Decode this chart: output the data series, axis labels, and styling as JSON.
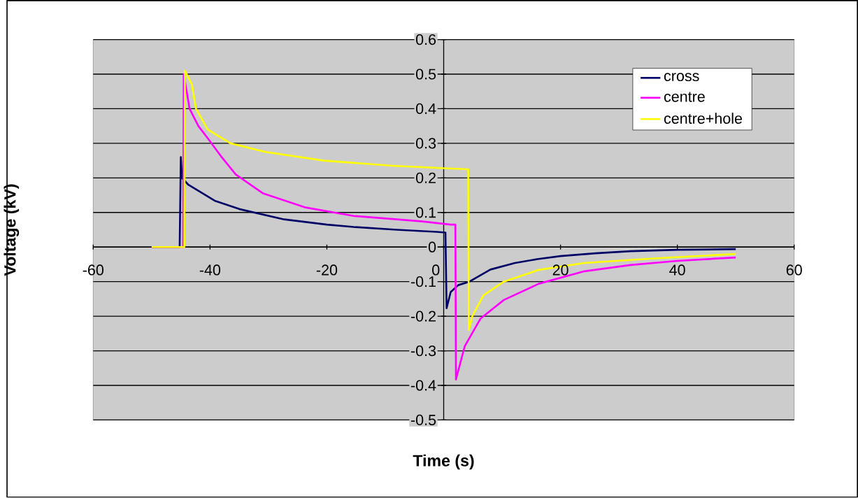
{
  "chart_data": {
    "type": "line",
    "xlabel": "Time (s)",
    "ylabel": "Voltage (kV)",
    "xlim": [
      -60,
      60
    ],
    "ylim": [
      -0.5,
      0.6
    ],
    "xticks": [
      -60,
      -40,
      -20,
      0,
      20,
      40,
      60
    ],
    "yticks": [
      -0.5,
      -0.4,
      -0.3,
      -0.2,
      -0.1,
      0,
      0.1,
      0.2,
      0.3,
      0.4,
      0.5,
      0.6
    ],
    "grid": "y",
    "legend": "top right",
    "series": [
      {
        "name": "cross",
        "color": "#000066",
        "x": [
          -50,
          -45.2,
          -45,
          -44.8,
          -43.7,
          -39.2,
          -35,
          -27.3,
          -20,
          -15.4,
          -8,
          -1.2,
          0.3,
          0.5,
          1.2,
          2.5,
          4.4,
          8,
          12.2,
          16,
          20,
          26,
          32,
          40,
          50
        ],
        "values": [
          0,
          0,
          0.26,
          0.2,
          0.18,
          0.134,
          0.11,
          0.08,
          0.065,
          0.058,
          0.05,
          0.044,
          0.042,
          -0.177,
          -0.13,
          -0.11,
          -0.1,
          -0.065,
          -0.046,
          -0.035,
          -0.026,
          -0.018,
          -0.012,
          -0.008,
          -0.006
        ]
      },
      {
        "name": "centre",
        "color": "#ff00ff",
        "x": [
          -50,
          -44.6,
          -44.5,
          -43.5,
          -42,
          -40.4,
          -38,
          -35.6,
          -30.9,
          -23.8,
          -15.4,
          -8,
          -3.6,
          1.2,
          2.0,
          2.1,
          3.6,
          6.3,
          10.3,
          16.3,
          24.1,
          32,
          40,
          50
        ],
        "values": [
          0,
          0,
          0.5,
          0.4,
          0.35,
          0.315,
          0.26,
          0.21,
          0.155,
          0.115,
          0.09,
          0.08,
          0.074,
          0.065,
          0.065,
          -0.383,
          -0.287,
          -0.207,
          -0.153,
          -0.106,
          -0.07,
          -0.052,
          -0.04,
          -0.03
        ]
      },
      {
        "name": "centre+hole",
        "color": "#ffff00",
        "x": [
          -50,
          -44.4,
          -44.3,
          -43.1,
          -42.4,
          -40.4,
          -36.5,
          -30.5,
          -20.5,
          -8.7,
          0,
          4.2,
          4.3,
          4.9,
          6.8,
          10.3,
          16.3,
          24.1,
          36,
          50
        ],
        "values": [
          0,
          0,
          0.51,
          0.47,
          0.4,
          0.34,
          0.3,
          0.275,
          0.25,
          0.235,
          0.228,
          0.225,
          -0.24,
          -0.2,
          -0.14,
          -0.1,
          -0.066,
          -0.046,
          -0.033,
          -0.02
        ]
      }
    ]
  }
}
